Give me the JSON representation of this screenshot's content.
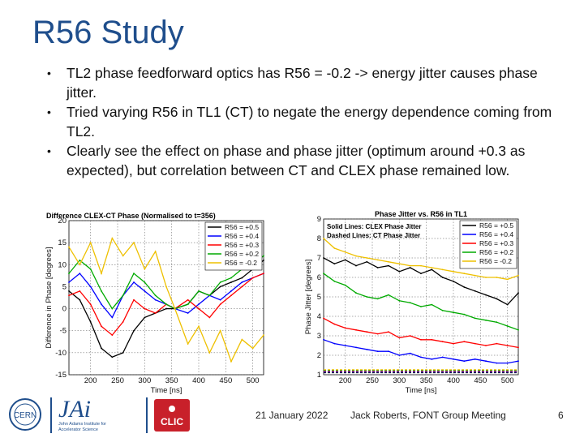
{
  "slide": {
    "title": "R56 Study",
    "bullets": [
      "TL2 phase feedforward optics has R56 = -0.2 -> energy jitter causes phase jitter.",
      "Tried varying R56 in TL1 (CT) to negate the energy dependence coming from TL2.",
      "Clearly see the effect on phase and phase jitter (optimum around +0.3 as expected), but correlation between CT and CLEX phase remained low."
    ],
    "bullet_symbol": "•"
  },
  "footer": {
    "date": "21 January 2022",
    "author": "Jack Roberts, FONT Group Meeting",
    "page": "6"
  },
  "logos": {
    "cern_text": "CERN",
    "jai_text": "JAi",
    "jai_subtitle": "John Adams Institute for Accelerator Science",
    "clic_text": "CLIC"
  },
  "colors": {
    "title": "#1f4e8c",
    "series": [
      "#000000",
      "#0000ff",
      "#ff0000",
      "#00aa00",
      "#eec000"
    ]
  },
  "chart_data": [
    {
      "type": "line",
      "title": "Difference CLEX-CT Phase (Normalised to t=356)",
      "xlabel": "Time [ns]",
      "ylabel": "Difference in Phase [degrees]",
      "xlim": [
        160,
        520
      ],
      "ylim": [
        -15,
        20
      ],
      "xticks": [
        200,
        250,
        300,
        350,
        400,
        450,
        500
      ],
      "yticks": [
        -15,
        -10,
        -5,
        0,
        5,
        10,
        15,
        20
      ],
      "grid": true,
      "legend_position": "top-right",
      "x": [
        160,
        180,
        200,
        220,
        240,
        260,
        280,
        300,
        320,
        340,
        356,
        380,
        400,
        420,
        440,
        460,
        480,
        500,
        520
      ],
      "series": [
        {
          "name": "R56 = +0.5",
          "values": [
            4,
            2,
            -3,
            -9,
            -11,
            -10,
            -5,
            -2,
            -1,
            0,
            0,
            1,
            4,
            3,
            5,
            6,
            7,
            9,
            11
          ]
        },
        {
          "name": "R56 = +0.4",
          "values": [
            6,
            8,
            5,
            1,
            -2,
            3,
            6,
            4,
            2,
            1,
            0,
            -1,
            1,
            3,
            2,
            4,
            6,
            7,
            8
          ]
        },
        {
          "name": "R56 = +0.3",
          "values": [
            3,
            4,
            1,
            -4,
            -6,
            -3,
            2,
            0,
            -1,
            1,
            0,
            2,
            0,
            -2,
            1,
            3,
            5,
            7,
            8
          ]
        },
        {
          "name": "R56 = +0.2",
          "values": [
            8,
            11,
            9,
            4,
            0,
            3,
            8,
            6,
            3,
            1,
            0,
            1,
            4,
            3,
            6,
            7,
            9,
            10,
            12
          ]
        },
        {
          "name": "R56 = -0.2",
          "values": [
            14,
            10,
            15,
            8,
            16,
            12,
            15,
            9,
            13,
            5,
            0,
            -8,
            -4,
            -10,
            -5,
            -12,
            -7,
            -9,
            -6
          ]
        }
      ]
    },
    {
      "type": "line",
      "title": "Phase Jitter vs. R56 in TL1",
      "annotation_lines": [
        "Solid Lines: CLEX Phase Jitter",
        "Dashed Lines: CT Phase Jitter"
      ],
      "xlabel": "Time [ns]",
      "ylabel": "Phase Jitter [degrees]",
      "xlim": [
        160,
        520
      ],
      "ylim": [
        1,
        9
      ],
      "xticks": [
        200,
        250,
        300,
        350,
        400,
        450,
        500
      ],
      "yticks": [
        1,
        2,
        3,
        4,
        5,
        6,
        7,
        8,
        9
      ],
      "grid": true,
      "legend_position": "top-right",
      "x": [
        160,
        180,
        200,
        220,
        240,
        260,
        280,
        300,
        320,
        340,
        360,
        380,
        400,
        420,
        440,
        460,
        480,
        500,
        520
      ],
      "series": [
        {
          "name": "R56 = +0.5",
          "values": [
            7,
            6.7,
            6.9,
            6.6,
            6.8,
            6.5,
            6.6,
            6.3,
            6.5,
            6.2,
            6.4,
            6.0,
            5.8,
            5.5,
            5.3,
            5.1,
            4.9,
            4.6,
            5.2
          ]
        },
        {
          "name": "R56 = +0.4",
          "values": [
            2.8,
            2.6,
            2.5,
            2.4,
            2.3,
            2.2,
            2.2,
            2.0,
            2.1,
            1.9,
            1.8,
            1.9,
            1.8,
            1.7,
            1.8,
            1.7,
            1.6,
            1.6,
            1.7
          ]
        },
        {
          "name": "R56 = +0.3",
          "values": [
            3.9,
            3.6,
            3.4,
            3.3,
            3.2,
            3.1,
            3.2,
            2.9,
            3.0,
            2.8,
            2.8,
            2.7,
            2.6,
            2.7,
            2.6,
            2.5,
            2.6,
            2.5,
            2.4
          ]
        },
        {
          "name": "R56 = +0.2",
          "values": [
            6.2,
            5.8,
            5.6,
            5.2,
            5.0,
            4.9,
            5.1,
            4.8,
            4.7,
            4.5,
            4.6,
            4.3,
            4.2,
            4.1,
            3.9,
            3.8,
            3.7,
            3.5,
            3.3
          ]
        },
        {
          "name": "R56 = -0.2",
          "values": [
            8.0,
            7.5,
            7.3,
            7.1,
            7.0,
            6.9,
            6.8,
            6.7,
            6.6,
            6.6,
            6.5,
            6.4,
            6.3,
            6.2,
            6.1,
            6.0,
            6.0,
            5.9,
            6.1
          ]
        }
      ],
      "dashed_series_level": 1.1
    }
  ]
}
